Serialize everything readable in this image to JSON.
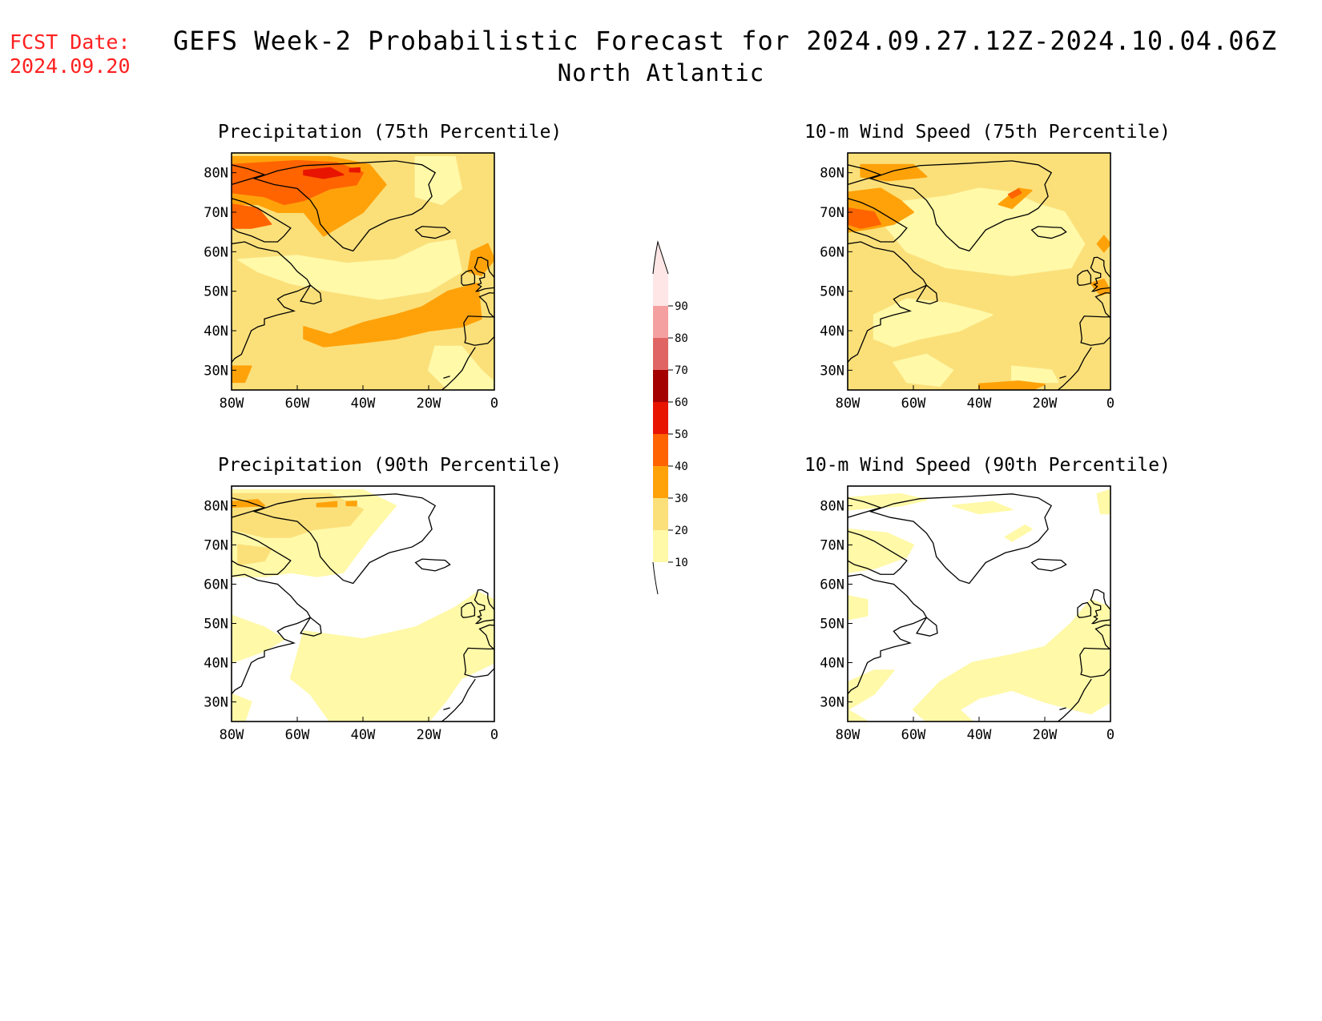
{
  "header": {
    "fcst_label": "FCST Date:",
    "fcst_date": "2024.09.20",
    "title": "GEFS Week-2 Probabilistic Forecast for 2024.09.27.12Z-2024.10.04.06Z",
    "subtitle": "North Atlantic"
  },
  "panels": [
    {
      "title": "Precipitation (75th Percentile)"
    },
    {
      "title": "10-m Wind Speed (75th Percentile)"
    },
    {
      "title": "Precipitation (90th Percentile)"
    },
    {
      "title": "10-m Wind Speed (90th Percentile)"
    }
  ],
  "axes": {
    "y_ticks": [
      "80N",
      "70N",
      "60N",
      "50N",
      "40N",
      "30N"
    ],
    "x_ticks": [
      "80W",
      "60W",
      "40W",
      "20W",
      "0"
    ]
  },
  "colorbar": {
    "levels": [
      {
        "value": "10",
        "color": "#fff9a8"
      },
      {
        "value": "20",
        "color": "#fbe07a"
      },
      {
        "value": "30",
        "color": "#ffa20a"
      },
      {
        "value": "40",
        "color": "#ff6400"
      },
      {
        "value": "50",
        "color": "#e81400"
      },
      {
        "value": "60",
        "color": "#a50000"
      },
      {
        "value": "70",
        "color": "#e06464"
      },
      {
        "value": "80",
        "color": "#f5a0a0"
      },
      {
        "value": "90",
        "color": "#ffe6e6"
      }
    ]
  }
}
